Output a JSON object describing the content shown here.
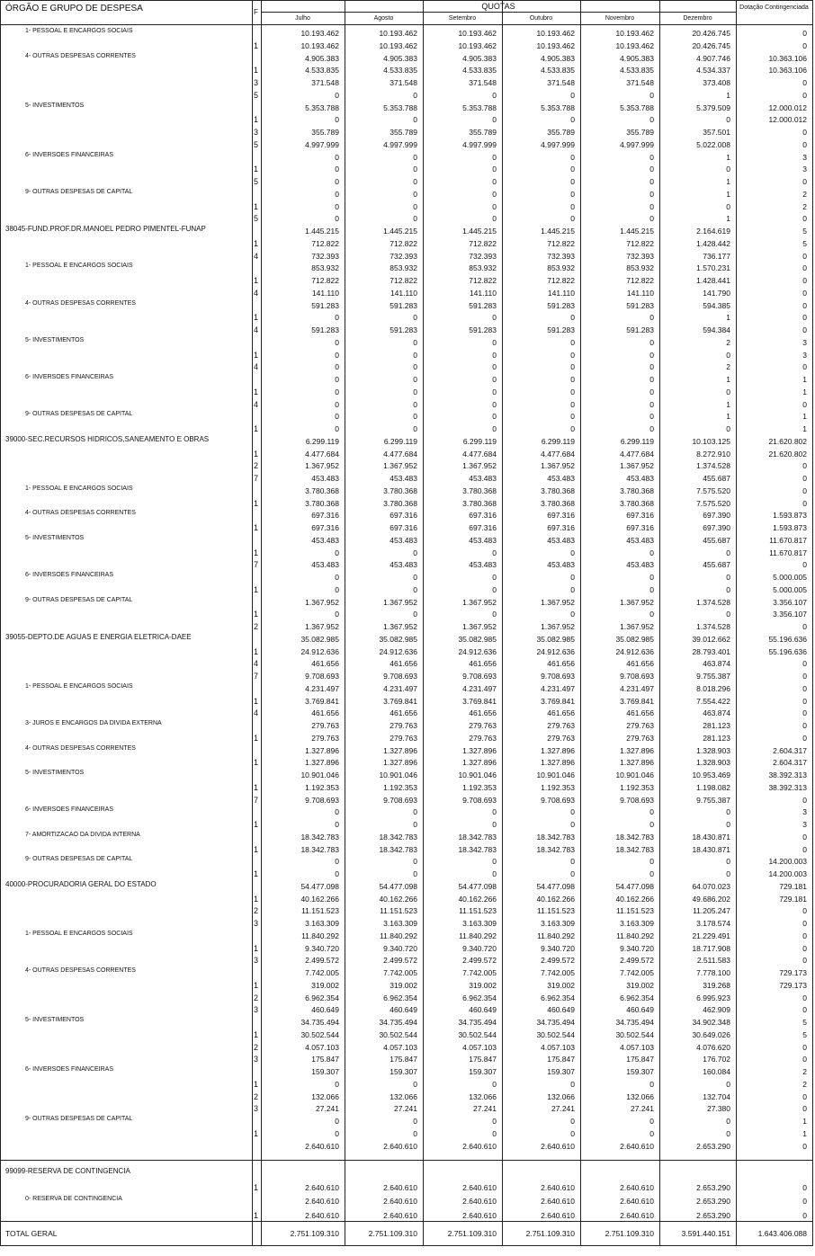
{
  "header": {
    "title": "ÓRGÃO E GRUPO DE DESPESA",
    "f": "F",
    "quotas": "QUOTAS",
    "months": [
      "Julho",
      "Agosto",
      "Setembro",
      "Outubro",
      "Novembro",
      "Dezembro"
    ],
    "dotacao": "Dotação Contingenciada"
  },
  "rows": [
    {
      "label": "1-   PESSOAL E ENCARGOS SOCIAIS",
      "values": [
        "10.193.462",
        "10.193.462",
        "10.193.462",
        "10.193.462",
        "10.193.462",
        "20.426.745",
        "0"
      ]
    },
    {
      "f": "1",
      "values": [
        "10.193.462",
        "10.193.462",
        "10.193.462",
        "10.193.462",
        "10.193.462",
        "20.426.745",
        "0"
      ]
    },
    {
      "label": "4-   OUTRAS DESPESAS CORRENTES",
      "values": [
        "4.905.383",
        "4.905.383",
        "4.905.383",
        "4.905.383",
        "4.905.383",
        "4.907.746",
        "10.363.106"
      ]
    },
    {
      "f": "1",
      "values": [
        "4.533.835",
        "4.533.835",
        "4.533.835",
        "4.533.835",
        "4.533.835",
        "4.534.337",
        "10.363.106"
      ]
    },
    {
      "f": "3",
      "values": [
        "371.548",
        "371.548",
        "371.548",
        "371.548",
        "371.548",
        "373.408",
        "0"
      ]
    },
    {
      "f": "5",
      "values": [
        "0",
        "0",
        "0",
        "0",
        "0",
        "1",
        "0"
      ]
    },
    {
      "label": "5-   INVESTIMENTOS",
      "values": [
        "5.353.788",
        "5.353.788",
        "5.353.788",
        "5.353.788",
        "5.353.788",
        "5.379.509",
        "12.000.012"
      ]
    },
    {
      "f": "1",
      "values": [
        "0",
        "0",
        "0",
        "0",
        "0",
        "0",
        "12.000.012"
      ]
    },
    {
      "f": "3",
      "values": [
        "355.789",
        "355.789",
        "355.789",
        "355.789",
        "355.789",
        "357.501",
        "0"
      ]
    },
    {
      "f": "5",
      "values": [
        "4.997.999",
        "4.997.999",
        "4.997.999",
        "4.997.999",
        "4.997.999",
        "5.022.008",
        "0"
      ]
    },
    {
      "label": "6-   INVERSOES FINANCEIRAS",
      "values": [
        "0",
        "0",
        "0",
        "0",
        "0",
        "1",
        "3"
      ]
    },
    {
      "f": "1",
      "values": [
        "0",
        "0",
        "0",
        "0",
        "0",
        "0",
        "3"
      ]
    },
    {
      "f": "5",
      "values": [
        "0",
        "0",
        "0",
        "0",
        "0",
        "1",
        "0"
      ]
    },
    {
      "label": "9-   OUTRAS DESPESAS DE CAPITAL",
      "values": [
        "0",
        "0",
        "0",
        "0",
        "0",
        "1",
        "2"
      ]
    },
    {
      "f": "1",
      "values": [
        "0",
        "0",
        "0",
        "0",
        "0",
        "0",
        "2"
      ]
    },
    {
      "f": "5",
      "values": [
        "0",
        "0",
        "0",
        "0",
        "0",
        "1",
        "0"
      ]
    },
    {
      "label": "38045-FUND.PROF.DR.MANOEL PEDRO PIMENTEL-FUNAP",
      "group": true,
      "values": [
        "1.445.215",
        "1.445.215",
        "1.445.215",
        "1.445.215",
        "1.445.215",
        "2.164.619",
        "5"
      ]
    },
    {
      "f": "1",
      "values": [
        "712.822",
        "712.822",
        "712.822",
        "712.822",
        "712.822",
        "1.428.442",
        "5"
      ]
    },
    {
      "f": "4",
      "values": [
        "732.393",
        "732.393",
        "732.393",
        "732.393",
        "732.393",
        "736.177",
        "0"
      ]
    },
    {
      "label": "1-   PESSOAL E ENCARGOS SOCIAIS",
      "values": [
        "853.932",
        "853.932",
        "853.932",
        "853.932",
        "853.932",
        "1.570.231",
        "0"
      ]
    },
    {
      "f": "1",
      "values": [
        "712.822",
        "712.822",
        "712.822",
        "712.822",
        "712.822",
        "1.428.441",
        "0"
      ]
    },
    {
      "f": "4",
      "values": [
        "141.110",
        "141.110",
        "141.110",
        "141.110",
        "141.110",
        "141.790",
        "0"
      ]
    },
    {
      "label": "4-   OUTRAS DESPESAS CORRENTES",
      "values": [
        "591.283",
        "591.283",
        "591.283",
        "591.283",
        "591.283",
        "594.385",
        "0"
      ]
    },
    {
      "f": "1",
      "values": [
        "0",
        "0",
        "0",
        "0",
        "0",
        "1",
        "0"
      ]
    },
    {
      "f": "4",
      "values": [
        "591.283",
        "591.283",
        "591.283",
        "591.283",
        "591.283",
        "594.384",
        "0"
      ]
    },
    {
      "label": "5-   INVESTIMENTOS",
      "values": [
        "0",
        "0",
        "0",
        "0",
        "0",
        "2",
        "3"
      ]
    },
    {
      "f": "1",
      "values": [
        "0",
        "0",
        "0",
        "0",
        "0",
        "0",
        "3"
      ]
    },
    {
      "f": "4",
      "values": [
        "0",
        "0",
        "0",
        "0",
        "0",
        "2",
        "0"
      ]
    },
    {
      "label": "6-   INVERSOES FINANCEIRAS",
      "values": [
        "0",
        "0",
        "0",
        "0",
        "0",
        "1",
        "1"
      ]
    },
    {
      "f": "1",
      "values": [
        "0",
        "0",
        "0",
        "0",
        "0",
        "0",
        "1"
      ]
    },
    {
      "f": "4",
      "values": [
        "0",
        "0",
        "0",
        "0",
        "0",
        "1",
        "0"
      ]
    },
    {
      "label": "9-   OUTRAS DESPESAS DE CAPITAL",
      "values": [
        "0",
        "0",
        "0",
        "0",
        "0",
        "1",
        "1"
      ]
    },
    {
      "f": "1",
      "values": [
        "0",
        "0",
        "0",
        "0",
        "0",
        "0",
        "1"
      ]
    },
    {
      "label": "39000-SEC.RECURSOS HIDRICOS,SANEAMENTO E OBRAS",
      "group": true,
      "values": [
        "6.299.119",
        "6.299.119",
        "6.299.119",
        "6.299.119",
        "6.299.119",
        "10.103.125",
        "21.620.802"
      ]
    },
    {
      "f": "1",
      "values": [
        "4.477.684",
        "4.477.684",
        "4.477.684",
        "4.477.684",
        "4.477.684",
        "8.272.910",
        "21.620.802"
      ]
    },
    {
      "f": "2",
      "values": [
        "1.367.952",
        "1.367.952",
        "1.367.952",
        "1.367.952",
        "1.367.952",
        "1.374.528",
        "0"
      ]
    },
    {
      "f": "7",
      "values": [
        "453.483",
        "453.483",
        "453.483",
        "453.483",
        "453.483",
        "455.687",
        "0"
      ]
    },
    {
      "label": "1-   PESSOAL E ENCARGOS SOCIAIS",
      "values": [
        "3.780.368",
        "3.780.368",
        "3.780.368",
        "3.780.368",
        "3.780.368",
        "7.575.520",
        "0"
      ]
    },
    {
      "f": "1",
      "values": [
        "3.780.368",
        "3.780.368",
        "3.780.368",
        "3.780.368",
        "3.780.368",
        "7.575.520",
        "0"
      ]
    },
    {
      "label": "4-   OUTRAS DESPESAS CORRENTES",
      "values": [
        "697.316",
        "697.316",
        "697.316",
        "697.316",
        "697.316",
        "697.390",
        "1.593.873"
      ]
    },
    {
      "f": "1",
      "values": [
        "697.316",
        "697.316",
        "697.316",
        "697.316",
        "697.316",
        "697.390",
        "1.593.873"
      ]
    },
    {
      "label": "5-   INVESTIMENTOS",
      "values": [
        "453.483",
        "453.483",
        "453.483",
        "453.483",
        "453.483",
        "455.687",
        "11.670.817"
      ]
    },
    {
      "f": "1",
      "values": [
        "0",
        "0",
        "0",
        "0",
        "0",
        "0",
        "11.670.817"
      ]
    },
    {
      "f": "7",
      "values": [
        "453.483",
        "453.483",
        "453.483",
        "453.483",
        "453.483",
        "455.687",
        "0"
      ]
    },
    {
      "label": "6-   INVERSOES FINANCEIRAS",
      "values": [
        "0",
        "0",
        "0",
        "0",
        "0",
        "0",
        "5.000.005"
      ]
    },
    {
      "f": "1",
      "values": [
        "0",
        "0",
        "0",
        "0",
        "0",
        "0",
        "5.000.005"
      ]
    },
    {
      "label": "9-   OUTRAS DESPESAS DE CAPITAL",
      "values": [
        "1.367.952",
        "1.367.952",
        "1.367.952",
        "1.367.952",
        "1.367.952",
        "1.374.528",
        "3.356.107"
      ]
    },
    {
      "f": "1",
      "values": [
        "0",
        "0",
        "0",
        "0",
        "0",
        "0",
        "3.356.107"
      ]
    },
    {
      "f": "2",
      "values": [
        "1.367.952",
        "1.367.952",
        "1.367.952",
        "1.367.952",
        "1.367.952",
        "1.374.528",
        "0"
      ]
    },
    {
      "label": "39055-DEPTO.DE AGUAS E ENERGIA ELETRICA-DAEE",
      "group": true,
      "values": [
        "35.082.985",
        "35.082.985",
        "35.082.985",
        "35.082.985",
        "35.082.985",
        "39.012.662",
        "55.196.636"
      ]
    },
    {
      "f": "1",
      "values": [
        "24.912.636",
        "24.912.636",
        "24.912.636",
        "24.912.636",
        "24.912.636",
        "28.793.401",
        "55.196.636"
      ]
    },
    {
      "f": "4",
      "values": [
        "461.656",
        "461.656",
        "461.656",
        "461.656",
        "461.656",
        "463.874",
        "0"
      ]
    },
    {
      "f": "7",
      "values": [
        "9.708.693",
        "9.708.693",
        "9.708.693",
        "9.708.693",
        "9.708.693",
        "9.755.387",
        "0"
      ]
    },
    {
      "label": "1-   PESSOAL E ENCARGOS SOCIAIS",
      "values": [
        "4.231.497",
        "4.231.497",
        "4.231.497",
        "4.231.497",
        "4.231.497",
        "8.018.296",
        "0"
      ]
    },
    {
      "f": "1",
      "values": [
        "3.769.841",
        "3.769.841",
        "3.769.841",
        "3.769.841",
        "3.769.841",
        "7.554.422",
        "0"
      ]
    },
    {
      "f": "4",
      "values": [
        "461.656",
        "461.656",
        "461.656",
        "461.656",
        "461.656",
        "463.874",
        "0"
      ]
    },
    {
      "label": "3-   JUROS E ENCARGOS DA DIVIDA EXTERNA",
      "values": [
        "279.763",
        "279.763",
        "279.763",
        "279.763",
        "279.763",
        "281.123",
        "0"
      ]
    },
    {
      "f": "1",
      "values": [
        "279.763",
        "279.763",
        "279.763",
        "279.763",
        "279.763",
        "281.123",
        "0"
      ]
    },
    {
      "label": "4-   OUTRAS DESPESAS CORRENTES",
      "values": [
        "1.327.896",
        "1.327.896",
        "1.327.896",
        "1.327.896",
        "1.327.896",
        "1.328.903",
        "2.604.317"
      ]
    },
    {
      "f": "1",
      "values": [
        "1.327.896",
        "1.327.896",
        "1.327.896",
        "1.327.896",
        "1.327.896",
        "1.328.903",
        "2.604.317"
      ]
    },
    {
      "label": "5-   INVESTIMENTOS",
      "values": [
        "10.901.046",
        "10.901.046",
        "10.901.046",
        "10.901.046",
        "10.901.046",
        "10.953.469",
        "38.392.313"
      ]
    },
    {
      "f": "1",
      "values": [
        "1.192.353",
        "1.192.353",
        "1.192.353",
        "1.192.353",
        "1.192.353",
        "1.198.082",
        "38.392.313"
      ]
    },
    {
      "f": "7",
      "values": [
        "9.708.693",
        "9.708.693",
        "9.708.693",
        "9.708.693",
        "9.708.693",
        "9.755.387",
        "0"
      ]
    },
    {
      "label": "6-   INVERSOES FINANCEIRAS",
      "values": [
        "0",
        "0",
        "0",
        "0",
        "0",
        "0",
        "3"
      ]
    },
    {
      "f": "1",
      "values": [
        "0",
        "0",
        "0",
        "0",
        "0",
        "0",
        "3"
      ]
    },
    {
      "label": "7-   AMORTIZACAO DA DIVIDA INTERNA",
      "values": [
        "18.342.783",
        "18.342.783",
        "18.342.783",
        "18.342.783",
        "18.342.783",
        "18.430.871",
        "0"
      ]
    },
    {
      "f": "1",
      "values": [
        "18.342.783",
        "18.342.783",
        "18.342.783",
        "18.342.783",
        "18.342.783",
        "18.430.871",
        "0"
      ]
    },
    {
      "label": "9-   OUTRAS DESPESAS DE CAPITAL",
      "values": [
        "0",
        "0",
        "0",
        "0",
        "0",
        "0",
        "14.200.003"
      ]
    },
    {
      "f": "1",
      "values": [
        "0",
        "0",
        "0",
        "0",
        "0",
        "0",
        "14.200.003"
      ]
    },
    {
      "label": "40000-PROCURADORIA GERAL DO ESTADO",
      "group": true,
      "values": [
        "54.477.098",
        "54.477.098",
        "54.477.098",
        "54.477.098",
        "54.477.098",
        "64.070.023",
        "729.181"
      ]
    },
    {
      "f": "1",
      "values": [
        "40.162.266",
        "40.162.266",
        "40.162.266",
        "40.162.266",
        "40.162.266",
        "49.686.202",
        "729.181"
      ]
    },
    {
      "f": "2",
      "values": [
        "11.151.523",
        "11.151.523",
        "11.151.523",
        "11.151.523",
        "11.151.523",
        "11.205.247",
        "0"
      ]
    },
    {
      "f": "3",
      "values": [
        "3.163.309",
        "3.163.309",
        "3.163.309",
        "3.163.309",
        "3.163.309",
        "3.178.574",
        "0"
      ]
    },
    {
      "label": "1-   PESSOAL E ENCARGOS SOCIAIS",
      "values": [
        "11.840.292",
        "11.840.292",
        "11.840.292",
        "11.840.292",
        "11.840.292",
        "21.229.491",
        "0"
      ]
    },
    {
      "f": "1",
      "values": [
        "9.340.720",
        "9.340.720",
        "9.340.720",
        "9.340.720",
        "9.340.720",
        "18.717.908",
        "0"
      ]
    },
    {
      "f": "3",
      "values": [
        "2.499.572",
        "2.499.572",
        "2.499.572",
        "2.499.572",
        "2.499.572",
        "2.511.583",
        "0"
      ]
    },
    {
      "label": "4-   OUTRAS DESPESAS CORRENTES",
      "values": [
        "7.742.005",
        "7.742.005",
        "7.742.005",
        "7.742.005",
        "7.742.005",
        "7.778.100",
        "729.173"
      ]
    },
    {
      "f": "1",
      "values": [
        "319.002",
        "319.002",
        "319.002",
        "319.002",
        "319.002",
        "319.268",
        "729.173"
      ]
    },
    {
      "f": "2",
      "values": [
        "6.962.354",
        "6.962.354",
        "6.962.354",
        "6.962.354",
        "6.962.354",
        "6.995.923",
        "0"
      ]
    },
    {
      "f": "3",
      "values": [
        "460.649",
        "460.649",
        "460.649",
        "460.649",
        "460.649",
        "462.909",
        "0"
      ]
    },
    {
      "label": "5-   INVESTIMENTOS",
      "values": [
        "34.735.494",
        "34.735.494",
        "34.735.494",
        "34.735.494",
        "34.735.494",
        "34.902.348",
        "5"
      ]
    },
    {
      "f": "1",
      "values": [
        "30.502.544",
        "30.502.544",
        "30.502.544",
        "30.502.544",
        "30.502.544",
        "30.649.026",
        "5"
      ]
    },
    {
      "f": "2",
      "values": [
        "4.057.103",
        "4.057.103",
        "4.057.103",
        "4.057.103",
        "4.057.103",
        "4.076.620",
        "0"
      ]
    },
    {
      "f": "3",
      "values": [
        "175.847",
        "175.847",
        "175.847",
        "175.847",
        "175.847",
        "176.702",
        "0"
      ]
    },
    {
      "label": "6-   INVERSOES FINANCEIRAS",
      "values": [
        "159.307",
        "159.307",
        "159.307",
        "159.307",
        "159.307",
        "160.084",
        "2"
      ]
    },
    {
      "f": "1",
      "values": [
        "0",
        "0",
        "0",
        "0",
        "0",
        "0",
        "2"
      ]
    },
    {
      "f": "2",
      "values": [
        "132.066",
        "132.066",
        "132.066",
        "132.066",
        "132.066",
        "132.704",
        "0"
      ]
    },
    {
      "f": "3",
      "values": [
        "27.241",
        "27.241",
        "27.241",
        "27.241",
        "27.241",
        "27.380",
        "0"
      ]
    },
    {
      "label": "9-   OUTRAS DESPESAS DE CAPITAL",
      "values": [
        "0",
        "0",
        "0",
        "0",
        "0",
        "0",
        "1"
      ]
    },
    {
      "f": "1",
      "values": [
        "0",
        "0",
        "0",
        "0",
        "0",
        "0",
        "1"
      ]
    },
    {
      "values": [
        "2.640.610",
        "2.640.610",
        "2.640.610",
        "2.640.610",
        "2.640.610",
        "2.653.290",
        "0"
      ]
    },
    {
      "label": "99099-RESERVA DE CONTINGENCIA",
      "group": true
    },
    {
      "f": "1",
      "values": [
        "2.640.610",
        "2.640.610",
        "2.640.610",
        "2.640.610",
        "2.640.610",
        "2.653.290",
        "0"
      ]
    },
    {
      "label": "0-   RESERVA DE CONTINGENCIA",
      "values": [
        "2.640.610",
        "2.640.610",
        "2.640.610",
        "2.640.610",
        "2.640.610",
        "2.653.290",
        "0"
      ]
    },
    {
      "f": "1",
      "values": [
        "2.640.610",
        "2.640.610",
        "2.640.610",
        "2.640.610",
        "2.640.610",
        "2.653.290",
        "0"
      ]
    }
  ],
  "total": {
    "label": "TOTAL GERAL",
    "values": [
      "2.751.109.310",
      "2.751.109.310",
      "2.751.109.310",
      "2.751.109.310",
      "2.751.109.310",
      "3.591.440.151",
      "1.643.406.088"
    ]
  }
}
